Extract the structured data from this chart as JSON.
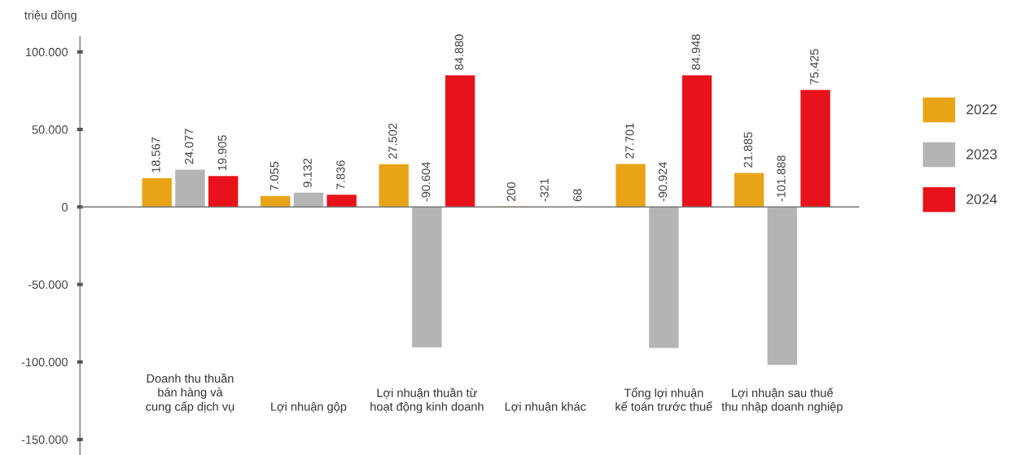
{
  "chart_data": {
    "type": "bar",
    "ylabel": "triệu đồng",
    "categories": [
      "Doanh thu thuần\nbán hàng và\ncung cấp dịch vụ",
      "Lợi nhuận gộp",
      "Lợi nhuận thuần từ\nhoạt động kinh doanh",
      "Lợi nhuận khác",
      "Tổng lợi nhuận\nkế toán trước thuế",
      "Lợi nhuận sau thuế\nthu nhập doanh nghiệp"
    ],
    "series": [
      {
        "name": "2022",
        "color": "#e8a317",
        "values": [
          18567,
          7055,
          27502,
          200,
          27701,
          21885
        ],
        "value_labels": [
          "18.567",
          "7.055",
          "27.502",
          "200",
          "27.701",
          "21.885"
        ]
      },
      {
        "name": "2023",
        "color": "#b4b4b4",
        "values": [
          24077,
          9132,
          -90604,
          -321,
          -90924,
          -101888
        ],
        "value_labels": [
          "24.077",
          "9.132",
          "-90.604",
          "-321",
          "-90.924",
          "-101.888"
        ]
      },
      {
        "name": "2024",
        "color": "#e8121a",
        "values": [
          19905,
          7836,
          84880,
          68,
          84948,
          75425
        ],
        "value_labels": [
          "19.905",
          "7.836",
          "84.880",
          "68",
          "84.948",
          "75.425"
        ]
      }
    ],
    "ylim": [
      -160000,
      110000
    ],
    "yticks": [
      {
        "value": -150000,
        "label": "-150.000"
      },
      {
        "value": -100000,
        "label": "-100.000"
      },
      {
        "value": -50000,
        "label": "-50.000"
      },
      {
        "value": 0,
        "label": "0"
      },
      {
        "value": 50000,
        "label": "50.000"
      },
      {
        "value": 100000,
        "label": "100.000"
      }
    ],
    "ref_lines": [
      {
        "axis": "y",
        "value": 0,
        "color": "#777777"
      }
    ],
    "grid": false,
    "legend": "right"
  }
}
